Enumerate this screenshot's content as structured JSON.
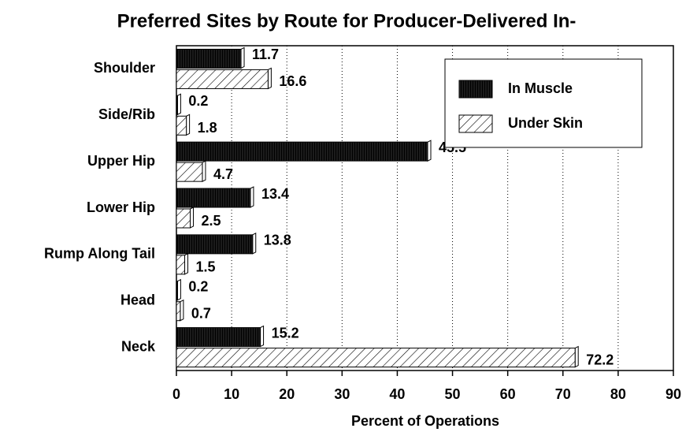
{
  "chart_data": {
    "type": "barh",
    "title": "Preferred Sites by Route for Producer-Delivered In-",
    "x_label": "Percent of Operations",
    "categories": [
      "Shoulder",
      "Side/Rib",
      "Upper Hip",
      "Lower Hip",
      "Rump Along Tail",
      "Head",
      "Neck"
    ],
    "series": [
      {
        "name": "In Muscle",
        "color": "#000000",
        "pattern": "solid",
        "values": [
          11.7,
          0.2,
          45.5,
          13.4,
          13.8,
          0.2,
          15.2
        ]
      },
      {
        "name": "Under Skin",
        "color": "#000000",
        "pattern": "hatch",
        "values": [
          16.6,
          1.8,
          4.7,
          2.5,
          1.5,
          0.7,
          72.2
        ]
      }
    ],
    "xlim": [
      0,
      90
    ],
    "xticks": [
      0,
      10,
      20,
      30,
      40,
      50,
      60,
      70,
      80,
      90
    ],
    "grid": true,
    "legend": "upper right"
  }
}
